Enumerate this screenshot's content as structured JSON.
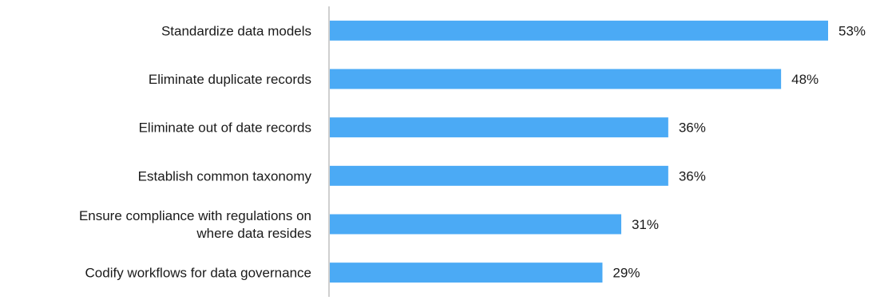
{
  "chart_data": {
    "type": "bar",
    "orientation": "horizontal",
    "categories": [
      [
        "Standardize data models"
      ],
      [
        "Eliminate duplicate records"
      ],
      [
        "Eliminate out of date records"
      ],
      [
        "Establish common taxonomy"
      ],
      [
        "Ensure compliance with regulations on",
        "where data resides"
      ],
      [
        "Codify workflows for data governance"
      ]
    ],
    "values": [
      53,
      48,
      36,
      36,
      31,
      29
    ],
    "value_labels": [
      "53%",
      "48%",
      "36%",
      "36%",
      "31%",
      "29%"
    ],
    "title": "",
    "xlabel": "",
    "ylabel": "",
    "xlim": [
      0,
      53
    ],
    "grid": false,
    "legend": "none",
    "bar_color": "#4BAAF5",
    "axis_color": "#BFBFBF"
  }
}
